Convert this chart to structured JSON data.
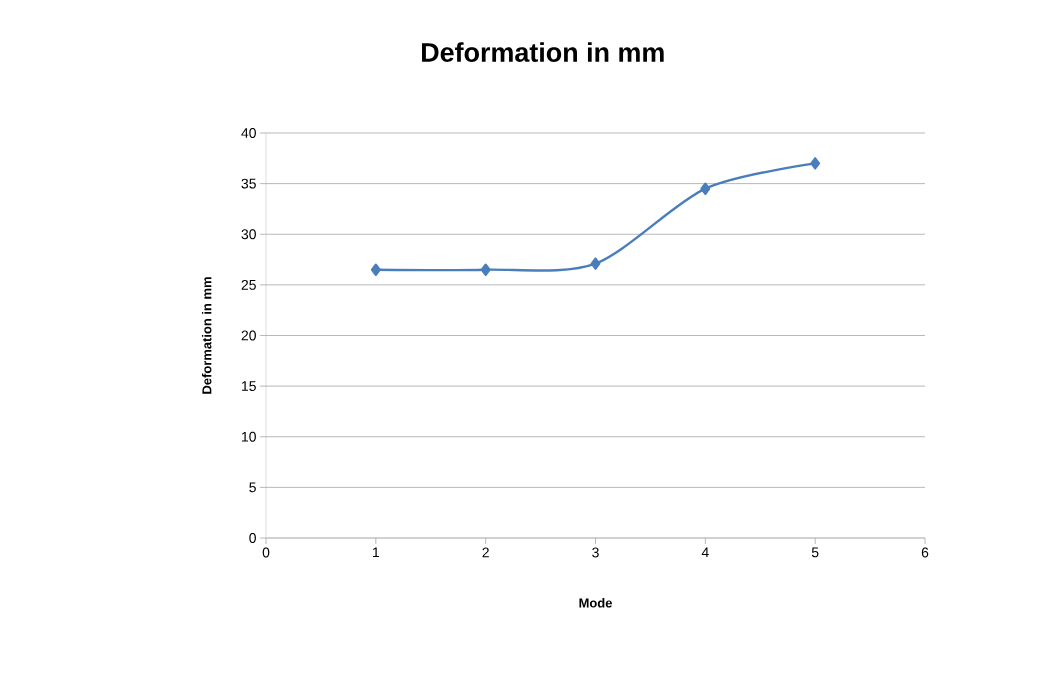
{
  "chart_data": {
    "type": "line",
    "title": "Deformation in mm",
    "xlabel": "Mode",
    "ylabel": "Deformation in mm",
    "x": [
      1,
      2,
      3,
      4,
      5
    ],
    "series": [
      {
        "color": "#4a7ebb",
        "values": [
          26.5,
          26.5,
          27.1,
          34.5,
          37
        ]
      }
    ],
    "xlim": [
      0,
      6
    ],
    "xticks": [
      0,
      1,
      2,
      3,
      4,
      5,
      6
    ],
    "ylim": [
      0,
      40
    ],
    "yticks": [
      0,
      5,
      10,
      15,
      20,
      25,
      30,
      35,
      40
    ],
    "grid": "y",
    "marker": "diamond",
    "line_style": "solid"
  }
}
